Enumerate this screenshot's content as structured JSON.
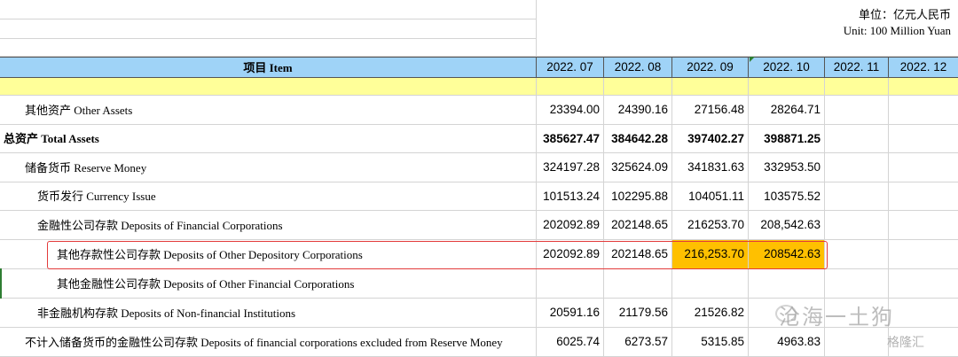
{
  "unit": {
    "cn": "单位：亿元人民币",
    "en": "Unit: 100 Million Yuan"
  },
  "header": {
    "item_label": "项目  Item",
    "months": [
      "2022. 07",
      "2022. 08",
      "2022. 09",
      "2022. 10",
      "2022. 11",
      "2022. 12"
    ]
  },
  "rows": [
    {
      "label": "其他资产  Other Assets",
      "values": [
        "23394.00",
        "24390.16",
        "27156.48",
        "28264.71",
        "",
        ""
      ]
    },
    {
      "label": "总资产  Total Assets",
      "values": [
        "385627.47",
        "384642.28",
        "397402.27",
        "398871.25",
        "",
        ""
      ]
    },
    {
      "label": "储备货币  Reserve Money",
      "values": [
        "324197.28",
        "325624.09",
        "341831.63",
        "332953.50",
        "",
        ""
      ]
    },
    {
      "label": "货币发行  Currency Issue",
      "values": [
        "101513.24",
        "102295.88",
        "104051.11",
        "103575.52",
        "",
        ""
      ]
    },
    {
      "label": "金融性公司存款  Deposits of  Financial Corporations",
      "values": [
        "202092.89",
        "202148.65",
        "216253.70",
        "208,542.63",
        "",
        ""
      ]
    },
    {
      "label": "其他存款性公司存款  Deposits of  Other Depository Corporations",
      "values": [
        "202092.89",
        "202148.65",
        "216,253.70",
        "208542.63",
        "",
        ""
      ]
    },
    {
      "label": "其他金融性公司存款  Deposits of  Other Financial Corporations",
      "values": [
        "",
        "",
        "",
        "",
        "",
        ""
      ]
    },
    {
      "label": "非金融机构存款 Deposits of  Non-financial Institutions",
      "values": [
        "20591.16",
        "21179.56",
        "21526.82",
        "",
        "",
        ""
      ]
    },
    {
      "label": "不计入储备货币的金融性公司存款  Deposits of financial corporations excluded from Reserve Money",
      "values": [
        "6025.74",
        "6273.57",
        "5315.85",
        "4963.83",
        "",
        ""
      ]
    }
  ],
  "watermark": {
    "text": "沧海一土狗",
    "logo": "格隆汇"
  }
}
